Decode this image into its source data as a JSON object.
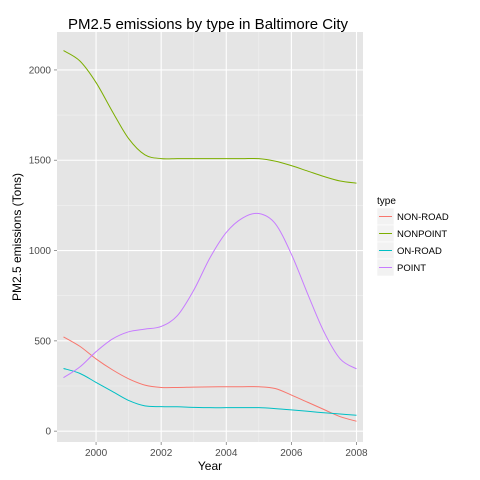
{
  "chart_data": {
    "type": "line",
    "title": "PM2.5 emissions by type in Baltimore City",
    "xlabel": "Year",
    "ylabel": "PM2.5 emissions (Tons)",
    "xlim": [
      1998.8,
      2008.2
    ],
    "ylim": [
      -60,
      2210
    ],
    "xticks": [
      2000,
      2002,
      2004,
      2006,
      2008
    ],
    "xtick_labels": [
      "2000",
      "2002",
      "2004",
      "2006",
      "2008"
    ],
    "yticks": [
      0,
      500,
      1000,
      1500,
      2000
    ],
    "ytick_labels": [
      "0",
      "500",
      "1000",
      "1500",
      "2000"
    ],
    "grid": true,
    "legend": {
      "title": "type",
      "position": "right"
    },
    "x": [
      1999,
      1999.5,
      2000,
      2000.5,
      2001,
      2001.5,
      2002,
      2002.5,
      2003,
      2003.5,
      2004,
      2004.5,
      2005,
      2005.5,
      2006,
      2006.5,
      2007,
      2007.5,
      2008
    ],
    "series": [
      {
        "name": "NON-ROAD",
        "color": "#F8766D",
        "values": [
          522,
          470,
          400,
          340,
          290,
          255,
          242,
          242,
          244,
          245,
          246,
          246,
          246,
          236,
          200,
          160,
          120,
          80,
          55
        ]
      },
      {
        "name": "NONPOINT",
        "color": "#7CAE00",
        "values": [
          2107,
          2050,
          1930,
          1770,
          1620,
          1530,
          1509,
          1509,
          1509,
          1509,
          1509,
          1509,
          1509,
          1495,
          1470,
          1440,
          1410,
          1385,
          1373
        ]
      },
      {
        "name": "ON-ROAD",
        "color": "#00BFC4",
        "values": [
          347,
          320,
          270,
          220,
          170,
          140,
          136,
          135,
          132,
          130,
          130,
          130,
          130,
          125,
          118,
          110,
          102,
          95,
          88
        ]
      },
      {
        "name": "POINT",
        "color": "#C77CFF",
        "values": [
          296,
          355,
          440,
          510,
          550,
          565,
          580,
          640,
          780,
          960,
          1100,
          1180,
          1205,
          1150,
          980,
          760,
          550,
          400,
          345
        ]
      }
    ]
  }
}
